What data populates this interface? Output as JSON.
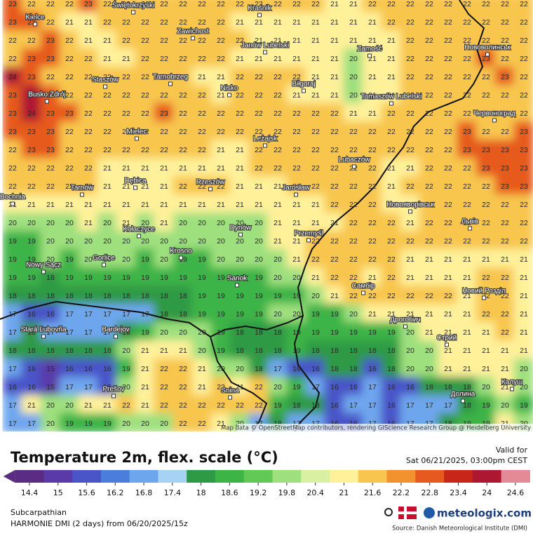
{
  "map": {
    "title": "Temperature 2m, flex. scale (°C)",
    "valid_label": "Valid for",
    "valid_time": "Sat 06/21/2025, 03:00pm CEST",
    "region": "Subcarpathian",
    "model": "HARMONIE DMI (2 days)  from  06/20/2025/15z",
    "brand": "meteologix.com",
    "source": "Source: Danish Meteorological Institute (DMI)",
    "attribution": "Map data © OpenStreetMap contributors, rendering GIScience Research Group @ Heidelberg University",
    "scale": {
      "ticks": [
        14.4,
        15,
        15.6,
        16.2,
        16.8,
        17.4,
        18,
        18.6,
        19.2,
        19.8,
        20.4,
        21,
        21.6,
        22.2,
        22.8,
        23.4,
        24,
        24.6
      ],
      "colors": [
        "#5b2c83",
        "#5a3aa8",
        "#4a55c8",
        "#4a7ddc",
        "#6ea6ee",
        "#a6d2f3",
        "#2e9a45",
        "#3cb446",
        "#62c957",
        "#9fe07e",
        "#d9f0a2",
        "#fff19a",
        "#f8c64e",
        "#f2922e",
        "#e65a1f",
        "#c9261a",
        "#ad1732",
        "#e48a96"
      ]
    },
    "cities": [
      "Świętokrzyski",
      "Kielce",
      "Kraśnik",
      "Zawichost",
      "Janów Lubelski",
      "Zamość",
      "Нововолинськ",
      "Staszów",
      "Tarnobrzeg",
      "Nisko",
      "Biłgoraj",
      "Busko Zdrój",
      "Tomaszów Lubelski",
      "Червоноград",
      "Mielec",
      "Leżajsk",
      "Lubaczów",
      "Dębica",
      "Rzeszów",
      "Tarnów",
      "Jarosław",
      "Bochnia",
      "Новояворівськ",
      "Львів",
      "Kołaczyce",
      "Dynów",
      "Przemyśl",
      "Krosno",
      "Gorlice",
      "Nowy Sącz",
      "Sanok",
      "Самбір",
      "Новий Розділ",
      "Stará Ľubovňa",
      "Bardejov",
      "Дрогобич",
      "Стрий",
      "Prešov",
      "Snina",
      "Долина",
      "Калуш"
    ],
    "grid": [
      [
        23,
        22,
        22,
        22,
        23,
        22,
        22,
        22,
        22,
        22,
        22,
        22,
        22,
        22,
        22,
        22,
        22,
        21,
        21,
        22,
        22,
        22,
        22,
        22,
        22,
        22,
        22,
        22
      ],
      [
        23,
        23,
        22,
        21,
        21,
        22,
        22,
        22,
        22,
        22,
        22,
        22,
        21,
        21,
        21,
        21,
        21,
        21,
        21,
        21,
        22,
        22,
        22,
        22,
        22,
        22,
        22,
        22
      ],
      [
        22,
        22,
        23,
        22,
        21,
        21,
        22,
        22,
        22,
        22,
        22,
        22,
        22,
        21,
        21,
        21,
        21,
        21,
        21,
        21,
        21,
        22,
        22,
        22,
        22,
        22,
        22,
        22
      ],
      [
        22,
        23,
        23,
        22,
        22,
        21,
        21,
        22,
        22,
        22,
        22,
        22,
        21,
        21,
        21,
        21,
        21,
        21,
        20,
        21,
        21,
        22,
        22,
        22,
        22,
        23,
        22,
        22
      ],
      [
        24,
        23,
        22,
        22,
        22,
        22,
        22,
        22,
        22,
        22,
        21,
        21,
        22,
        22,
        22,
        22,
        21,
        21,
        20,
        21,
        21,
        22,
        22,
        22,
        22,
        22,
        23,
        22
      ],
      [
        23,
        24,
        23,
        22,
        22,
        22,
        22,
        22,
        22,
        22,
        22,
        21,
        22,
        22,
        22,
        21,
        21,
        21,
        20,
        21,
        21,
        22,
        22,
        22,
        22,
        22,
        22,
        22
      ],
      [
        23,
        24,
        23,
        23,
        22,
        22,
        22,
        22,
        23,
        22,
        22,
        22,
        22,
        22,
        22,
        22,
        22,
        22,
        21,
        21,
        22,
        22,
        22,
        22,
        22,
        22,
        22,
        22
      ],
      [
        23,
        23,
        23,
        22,
        22,
        22,
        22,
        22,
        22,
        22,
        22,
        22,
        22,
        22,
        22,
        22,
        22,
        22,
        22,
        22,
        22,
        22,
        22,
        22,
        23,
        22,
        22,
        23
      ],
      [
        22,
        23,
        23,
        22,
        22,
        22,
        22,
        22,
        22,
        22,
        22,
        21,
        21,
        22,
        22,
        22,
        22,
        22,
        22,
        22,
        22,
        22,
        22,
        22,
        23,
        23,
        23,
        23
      ],
      [
        22,
        22,
        22,
        22,
        22,
        21,
        21,
        21,
        21,
        21,
        21,
        21,
        21,
        22,
        22,
        22,
        22,
        22,
        22,
        22,
        21,
        21,
        22,
        22,
        22,
        23,
        23,
        23
      ],
      [
        22,
        22,
        22,
        22,
        22,
        21,
        21,
        21,
        21,
        22,
        22,
        22,
        21,
        21,
        21,
        22,
        22,
        22,
        22,
        22,
        21,
        22,
        22,
        22,
        22,
        22,
        23,
        23
      ],
      [
        21,
        21,
        21,
        21,
        21,
        21,
        21,
        21,
        21,
        21,
        21,
        21,
        21,
        21,
        21,
        21,
        21,
        22,
        22,
        22,
        21,
        21,
        22,
        22,
        22,
        22,
        22,
        22
      ],
      [
        20,
        20,
        20,
        20,
        21,
        20,
        21,
        20,
        21,
        20,
        20,
        20,
        20,
        20,
        21,
        21,
        21,
        21,
        22,
        22,
        22,
        21,
        22,
        22,
        22,
        22,
        22,
        22
      ],
      [
        19,
        19,
        20,
        20,
        20,
        20,
        20,
        20,
        20,
        20,
        20,
        20,
        20,
        20,
        21,
        21,
        22,
        22,
        22,
        22,
        22,
        22,
        22,
        22,
        22,
        22,
        22,
        22
      ],
      [
        19,
        19,
        20,
        19,
        20,
        20,
        20,
        19,
        20,
        19,
        19,
        20,
        20,
        20,
        20,
        21,
        22,
        22,
        22,
        22,
        22,
        21,
        21,
        21,
        21,
        21,
        21,
        21
      ],
      [
        19,
        19,
        18,
        19,
        19,
        19,
        19,
        19,
        19,
        19,
        19,
        19,
        19,
        19,
        20,
        20,
        21,
        22,
        22,
        21,
        22,
        21,
        21,
        21,
        21,
        22,
        22,
        21
      ],
      [
        18,
        18,
        18,
        18,
        18,
        18,
        18,
        18,
        18,
        18,
        19,
        19,
        19,
        19,
        19,
        19,
        20,
        21,
        22,
        22,
        22,
        22,
        22,
        22,
        21,
        22,
        22,
        21
      ],
      [
        17,
        16,
        16,
        17,
        17,
        17,
        17,
        17,
        18,
        18,
        19,
        19,
        19,
        19,
        20,
        20,
        19,
        19,
        20,
        21,
        21,
        21,
        21,
        21,
        21,
        22,
        22,
        21
      ],
      [
        17,
        18,
        17,
        17,
        17,
        17,
        18,
        19,
        20,
        20,
        20,
        19,
        18,
        18,
        18,
        19,
        19,
        19,
        19,
        19,
        19,
        20,
        21,
        21,
        21,
        21,
        22,
        21
      ],
      [
        18,
        18,
        18,
        18,
        18,
        18,
        20,
        21,
        21,
        21,
        20,
        19,
        18,
        18,
        18,
        19,
        18,
        18,
        18,
        18,
        18,
        20,
        20,
        21,
        21,
        21,
        21,
        21
      ],
      [
        17,
        16,
        15,
        16,
        16,
        16,
        19,
        21,
        22,
        22,
        21,
        20,
        20,
        18,
        17,
        16,
        16,
        18,
        18,
        16,
        18,
        20,
        20,
        21,
        21,
        21,
        21,
        20
      ],
      [
        16,
        16,
        15,
        17,
        17,
        16,
        20,
        21,
        22,
        22,
        21,
        22,
        21,
        22,
        20,
        19,
        17,
        16,
        16,
        17,
        16,
        16,
        18,
        18,
        18,
        20,
        21,
        20
      ],
      [
        17,
        21,
        20,
        20,
        21,
        21,
        22,
        21,
        22,
        22,
        22,
        22,
        22,
        22,
        19,
        18,
        18,
        16,
        17,
        17,
        16,
        17,
        17,
        17,
        18,
        19,
        20,
        19
      ],
      [
        17,
        17,
        20,
        19,
        19,
        19,
        20,
        20,
        20,
        22,
        22,
        21,
        20,
        17,
        18,
        17,
        17,
        16,
        16,
        17,
        16,
        17,
        17,
        18,
        19,
        19,
        21,
        20
      ]
    ]
  }
}
